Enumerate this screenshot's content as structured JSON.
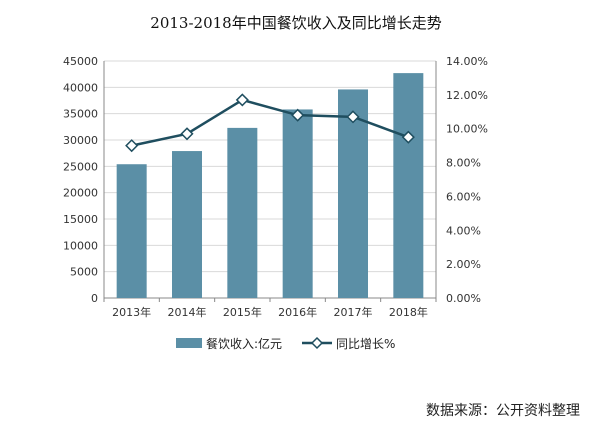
{
  "chart_data": {
    "type": "bar",
    "title": "2013-2018年中国餐饮收入及同比增长走势",
    "categories": [
      "2013年",
      "2014年",
      "2015年",
      "2016年",
      "2017年",
      "2018年"
    ],
    "series": [
      {
        "name": "餐饮收入:亿元",
        "type": "bar",
        "axis": "left",
        "values": [
          25400,
          27900,
          32300,
          35800,
          39600,
          42700
        ]
      },
      {
        "name": "同比增长%",
        "type": "line",
        "axis": "right",
        "values": [
          9.0,
          9.7,
          11.7,
          10.8,
          10.7,
          9.5
        ]
      }
    ],
    "y_left": {
      "min": 0,
      "max": 45000,
      "ticks": [
        "0",
        "5000",
        "10000",
        "15000",
        "20000",
        "25000",
        "30000",
        "35000",
        "40000",
        "45000"
      ]
    },
    "y_right": {
      "min": 0,
      "max": 14,
      "ticks": [
        "0.00%",
        "2.00%",
        "4.00%",
        "6.00%",
        "8.00%",
        "10.00%",
        "12.00%",
        "14.00%"
      ]
    },
    "grid": true,
    "legend_position": "bottom",
    "colors": {
      "bar": "#5b8fa6",
      "line": "#1f4e5f",
      "marker_fill": "#ffffff",
      "grid": "#d9d9d9",
      "axis": "#888888"
    }
  },
  "source_text": "数据来源：公开资料整理"
}
